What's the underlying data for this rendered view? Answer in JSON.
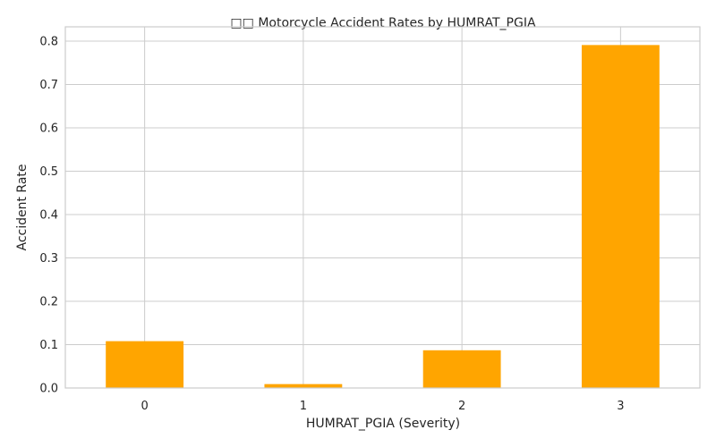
{
  "chart_data": {
    "type": "bar",
    "title": "□□ Motorcycle Accident Rates by HUMRAT_PGIA",
    "xlabel": "HUMRAT_PGIA (Severity)",
    "ylabel": "Accident Rate",
    "categories": [
      "0",
      "1",
      "2",
      "3"
    ],
    "values": [
      0.108,
      0.009,
      0.087,
      0.791
    ],
    "ylim": [
      0,
      0.833
    ],
    "yticks": [
      0.0,
      0.1,
      0.2,
      0.3,
      0.4,
      0.5,
      0.6,
      0.7,
      0.8
    ],
    "ytick_labels": [
      "0.0",
      "0.1",
      "0.2",
      "0.3",
      "0.4",
      "0.5",
      "0.6",
      "0.7",
      "0.8"
    ],
    "grid": true,
    "bar_color": "#ffa500"
  }
}
